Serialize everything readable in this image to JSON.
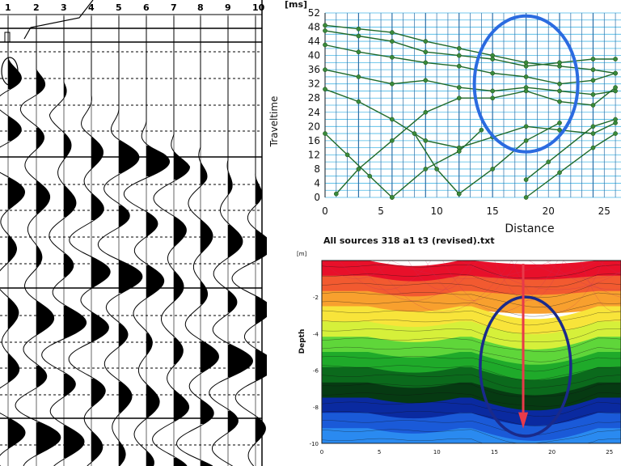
{
  "seismogram": {
    "trace_labels": [
      "1",
      "2",
      "3",
      "4",
      "5",
      "6",
      "7",
      "8",
      "9",
      "10"
    ]
  },
  "traveltime_plot": {
    "unit_label": "[ms]",
    "ylabel": "Traveltime",
    "xlabel": "Distance",
    "y_ticks": [
      "52",
      "48",
      "44",
      "40",
      "36",
      "32",
      "28",
      "24",
      "20",
      "16",
      "12",
      "8",
      "4",
      "0"
    ],
    "x_ticks": [
      "0",
      "5",
      "10",
      "15",
      "20",
      "25"
    ],
    "highlight_color": "#2b6be0"
  },
  "tomogram": {
    "title": "All sources 318 a1 t3 (revised).txt",
    "unit_label": "[m]",
    "ylabel": "Depth",
    "y_ticks": [
      "-2",
      "-4",
      "-6",
      "-8",
      "-10"
    ],
    "x_ticks": [
      "0",
      "5",
      "10",
      "15",
      "20",
      "25"
    ],
    "arrow_color": "#e83a4a",
    "highlight_color": "#1a2a8a"
  },
  "chart_data": [
    {
      "type": "line",
      "xlabel": "Distance",
      "ylabel": "Traveltime",
      "xlim": [
        0,
        25
      ],
      "ylim": [
        0,
        52
      ],
      "grid": true,
      "series": [
        {
          "x": [
            0,
            3,
            6,
            9,
            12,
            15,
            18,
            21,
            24,
            26
          ],
          "y": [
            48.5,
            47.5,
            46.5,
            44,
            42,
            40,
            38,
            37,
            36,
            35
          ]
        },
        {
          "x": [
            0,
            3,
            6,
            9,
            12,
            15,
            18,
            21,
            24,
            26
          ],
          "y": [
            47,
            45.5,
            44,
            41,
            40,
            39,
            37,
            38,
            39,
            39
          ]
        },
        {
          "x": [
            0,
            3,
            6,
            9,
            12,
            15,
            18,
            21,
            24,
            26
          ],
          "y": [
            43,
            41,
            39.5,
            38,
            37,
            35,
            34,
            32,
            33,
            35
          ]
        },
        {
          "x": [
            0,
            3,
            6,
            9,
            12,
            15,
            18,
            21,
            24,
            26
          ],
          "y": [
            36,
            34,
            32,
            33,
            31,
            30,
            31,
            30,
            29,
            30
          ]
        },
        {
          "x": [
            0,
            3,
            6,
            9,
            12,
            15,
            18,
            21,
            24,
            26
          ],
          "y": [
            30.5,
            27,
            22,
            16,
            14,
            17,
            20,
            19,
            18,
            21
          ]
        },
        {
          "x": [
            1,
            3,
            6,
            9,
            12,
            15,
            18,
            21,
            24,
            26
          ],
          "y": [
            1,
            8,
            16,
            24,
            28,
            28,
            30,
            27,
            26,
            31
          ]
        },
        {
          "x": [
            0,
            2,
            4,
            6
          ],
          "y": [
            18,
            12,
            6,
            0
          ]
        },
        {
          "x": [
            6,
            9,
            12,
            14
          ],
          "y": [
            0,
            8,
            13,
            19
          ]
        },
        {
          "x": [
            8,
            10,
            12
          ],
          "y": [
            18,
            8,
            1
          ]
        },
        {
          "x": [
            12,
            15,
            18,
            21
          ],
          "y": [
            1,
            8,
            16,
            21
          ]
        },
        {
          "x": [
            18,
            21,
            24,
            26
          ],
          "y": [
            0,
            7,
            14,
            18
          ]
        },
        {
          "x": [
            18,
            20,
            24,
            26
          ],
          "y": [
            5,
            10,
            20,
            22
          ]
        }
      ]
    },
    {
      "type": "heatmap",
      "title": "All sources 318 a1 t3 (revised).txt",
      "ylabel": "Depth",
      "xlim": [
        0,
        25
      ],
      "ylim": [
        -10,
        0
      ],
      "colormap": [
        "#e8102a",
        "#f25a30",
        "#f8a02e",
        "#f8e43a",
        "#d6f03a",
        "#5fd63a",
        "#1faa2a",
        "#0b6a1c",
        "#063a12",
        "#0a2aa0",
        "#1a5ad8",
        "#2a8af0"
      ]
    }
  ]
}
